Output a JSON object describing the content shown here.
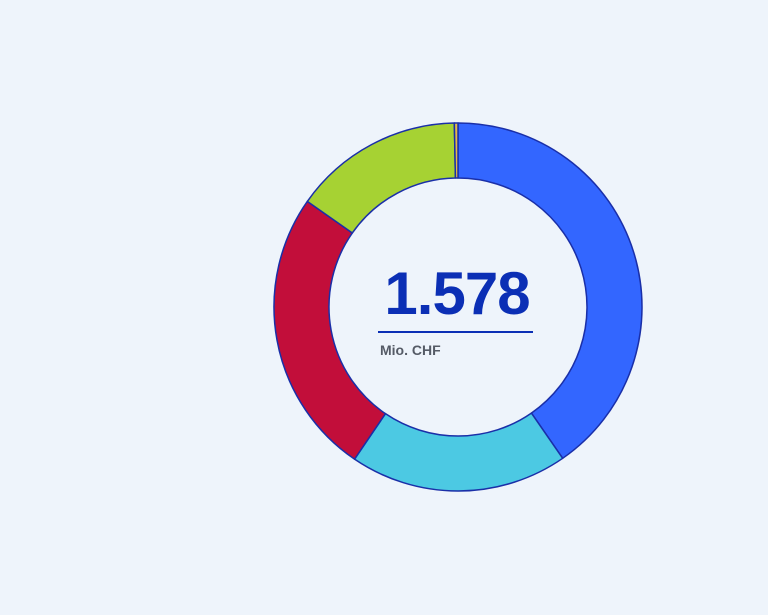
{
  "chart_data": {
    "type": "pie",
    "variant": "donut",
    "total_label": "1.578",
    "unit": "Mio. CHF",
    "segments": [
      {
        "value": 637,
        "color": "#3366ff"
      },
      {
        "value": 302,
        "color": "#4cc9e3"
      },
      {
        "value": 398,
        "color": "#c20e3a"
      },
      {
        "value": 236,
        "color": "#a6d233"
      },
      {
        "value": 5,
        "color": "#e3b84c"
      }
    ],
    "outline_color": "#1a2fa8",
    "title": "",
    "legend": "none"
  }
}
